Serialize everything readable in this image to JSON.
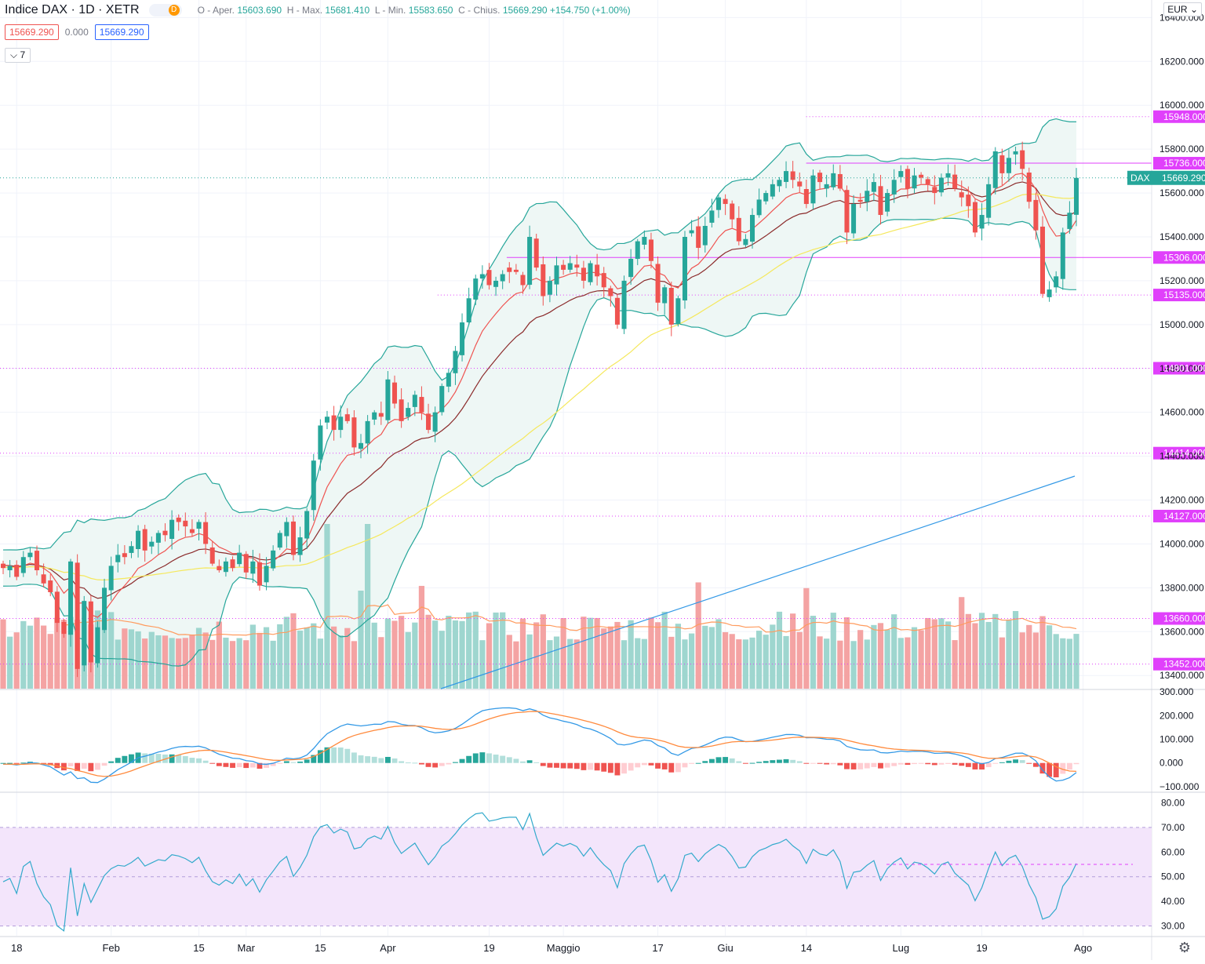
{
  "header": {
    "symbol": "Indice DAX · 1D · XETR",
    "badge": "D",
    "open_label": "O - Aper.",
    "open": "15603.690",
    "high_label": "H - Max.",
    "high": "15681.410",
    "low_label": "L - Min.",
    "low": "15583.650",
    "close_label": "C - Chius.",
    "close": "15669.290",
    "change": "+154.750 (+1.00%)",
    "bid": "15669.290",
    "spread": "0.000",
    "ask": "15669.290",
    "indicator_count": "7",
    "currency": "EUR"
  },
  "colors": {
    "up": "#26a69a",
    "down": "#ef5350",
    "vol_up": "#9ed6cf",
    "vol_down": "#f4a3a3",
    "bb": "#26a69a",
    "bb_fill": "#eef7f5",
    "ema_fast": "#ef5350",
    "ema_slow": "#8b2b2b",
    "sma": "#f5e85c",
    "long_ma": "#3399e6",
    "vol_ma": "#ff9b5e",
    "level": "#e040fb",
    "last": "#26a69a",
    "macd": "#3399e6",
    "signal": "#ff8a3d",
    "rsi": "#33aacc",
    "rsi_band": "#f3e5fb"
  },
  "chart_data": {
    "type": "candlestick",
    "title": "Indice DAX, 1D, XETR",
    "xlabel": "",
    "ylabel": "",
    "ylim": [
      13340,
      16480
    ],
    "price_ticks": [
      "13400.000",
      "13600.000",
      "13800.000",
      "14000.000",
      "14200.000",
      "14400.000",
      "14600.000",
      "14800.000",
      "15000.000",
      "15200.000",
      "15400.000",
      "15600.000",
      "15800.000",
      "16000.000",
      "16200.000",
      "16400.000"
    ],
    "x_ticks": [
      "18",
      "Feb",
      "15",
      "Mar",
      "15",
      "Apr",
      "19",
      "Maggio",
      "17",
      "Giu",
      "14",
      "Lug",
      "19",
      "Ago"
    ],
    "levels": [
      {
        "price": 15948,
        "label": "15948.000",
        "style": "dotted",
        "start": 0.7
      },
      {
        "price": 15736,
        "label": "15736.000",
        "style": "solid",
        "start": 0.7
      },
      {
        "price": 15306,
        "label": "15306.000",
        "style": "solid",
        "start": 0.44
      },
      {
        "price": 15135,
        "label": "15135.000",
        "style": "dotted",
        "start": 0.38
      },
      {
        "price": 14801,
        "label": "14801.000",
        "style": "dotted",
        "start": 0
      },
      {
        "price": 14414,
        "label": "14414.000",
        "style": "dotted",
        "start": 0
      },
      {
        "price": 14127,
        "label": "14127.000",
        "style": "dotted",
        "start": 0
      },
      {
        "price": 13660,
        "label": "13660.000",
        "style": "dotted",
        "start": 0
      },
      {
        "price": 13452,
        "label": "13452.000",
        "style": "dotted",
        "start": 0
      }
    ],
    "last_price": {
      "label": "DAX",
      "value": "15669.290",
      "price": 15669
    },
    "closes": [
      13890,
      13900,
      13850,
      13940,
      13960,
      13880,
      13820,
      13780,
      13640,
      13590,
      13920,
      13430,
      13740,
      13460,
      13620,
      13800,
      13900,
      13950,
      13940,
      13990,
      14060,
      13970,
      14010,
      14050,
      14040,
      14110,
      14100,
      14080,
      14050,
      14100,
      14000,
      13910,
      13880,
      13920,
      13890,
      13960,
      13870,
      13920,
      13810,
      13900,
      13970,
      14050,
      14100,
      13950,
      14030,
      14150,
      14380,
      14540,
      14580,
      14520,
      14580,
      14560,
      14440,
      14460,
      14560,
      14600,
      14580,
      14750,
      14640,
      14560,
      14620,
      14680,
      14600,
      14520,
      14600,
      14720,
      14780,
      14880,
      15010,
      15120,
      15210,
      15230,
      15180,
      15200,
      15230,
      15240,
      15240,
      15180,
      15400,
      15260,
      15130,
      15200,
      15270,
      15250,
      15280,
      15260,
      15200,
      15280,
      15220,
      15170,
      15130,
      15000,
      15200,
      15300,
      15380,
      15400,
      15290,
      15100,
      15170,
      15000,
      15120,
      15400,
      15430,
      15350,
      15450,
      15520,
      15580,
      15550,
      15480,
      15380,
      15390,
      15500,
      15570,
      15600,
      15640,
      15660,
      15700,
      15660,
      15630,
      15550,
      15680,
      15650,
      15640,
      15690,
      15620,
      15420,
      15550,
      15560,
      15610,
      15650,
      15500,
      15600,
      15660,
      15700,
      15620,
      15680,
      15670,
      15640,
      15600,
      15670,
      15690,
      15620,
      15580,
      15540,
      15420,
      15500,
      15640,
      15790,
      15690,
      15760,
      15790,
      15710,
      15560,
      15430,
      15140,
      15160,
      15220,
      15420,
      15510,
      15669
    ]
  },
  "macd": {
    "axis_ticks": [
      "300.000",
      "200.000",
      "100.000",
      "0.000",
      "−100.000"
    ],
    "ylim": [
      -120,
      310
    ]
  },
  "rsi": {
    "axis_ticks": [
      "80.00",
      "70.00",
      "60.00",
      "50.00",
      "40.00",
      "30.00"
    ],
    "ylim": [
      26,
      84
    ],
    "band": [
      30,
      70
    ]
  }
}
